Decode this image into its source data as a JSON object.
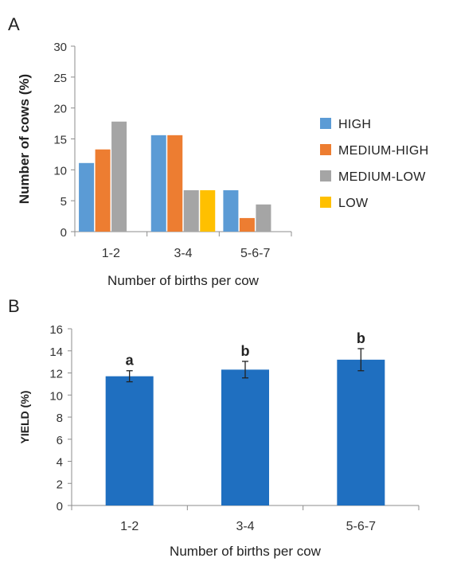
{
  "panel_a": {
    "letter": "A"
  },
  "panel_b": {
    "letter": "B"
  },
  "chart_data": [
    {
      "type": "bar",
      "panel": "A",
      "categories": [
        "1-2",
        "3-4",
        "5-6-7"
      ],
      "xlabel": "Number of births per cow",
      "ylabel": "Number of cows (%)",
      "ylim": [
        0,
        30
      ],
      "yticks": [
        0,
        5,
        10,
        15,
        20,
        25,
        30
      ],
      "grid": false,
      "legend_position": "right",
      "series": [
        {
          "name": "HIGH",
          "color": "#5B9BD5",
          "values": [
            11.1,
            15.6,
            6.7
          ]
        },
        {
          "name": "MEDIUM-HIGH",
          "color": "#ED7D31",
          "values": [
            13.3,
            15.6,
            2.2
          ]
        },
        {
          "name": "MEDIUM-LOW",
          "color": "#A5A5A5",
          "values": [
            17.8,
            6.7,
            4.4
          ]
        },
        {
          "name": "LOW",
          "color": "#FFC000",
          "values": [
            0,
            6.7,
            0
          ]
        }
      ]
    },
    {
      "type": "bar",
      "panel": "B",
      "categories": [
        "1-2",
        "3-4",
        "5-6-7"
      ],
      "xlabel": "Number of births per cow",
      "ylabel": "YIELD (%)",
      "ylim": [
        0,
        16
      ],
      "yticks": [
        0,
        2,
        4,
        6,
        8,
        10,
        12,
        14,
        16
      ],
      "grid": false,
      "color": "#1F6FC0",
      "values": [
        11.7,
        12.3,
        13.2
      ],
      "errors": [
        0.5,
        0.75,
        1.0
      ],
      "annotations": [
        "a",
        "b",
        "b"
      ]
    }
  ]
}
